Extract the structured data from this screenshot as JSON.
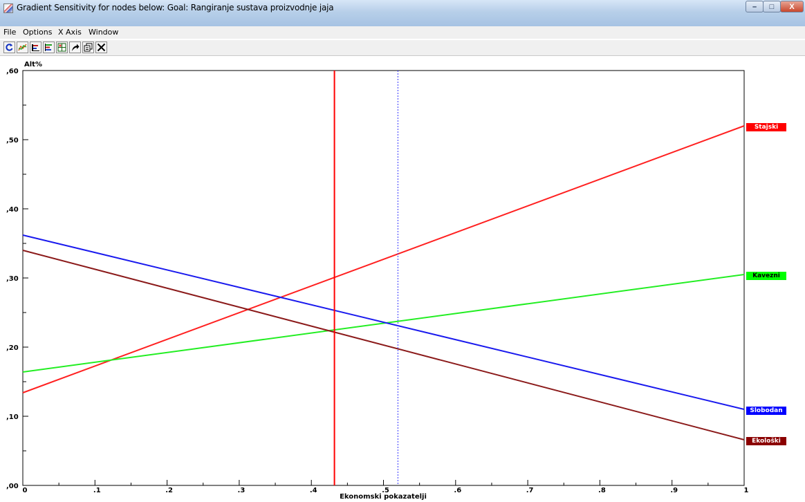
{
  "window": {
    "title": "Gradient Sensitivity for nodes below: Goal: Rangiranje sustava proizvodnje jaja",
    "minimize_label": "–",
    "maximize_label": "□",
    "close_label": "X"
  },
  "menu": [
    {
      "label": "File"
    },
    {
      "label": "Options"
    },
    {
      "label": "X Axis"
    },
    {
      "label": "Window"
    }
  ],
  "toolbar": [
    {
      "icon": "refresh-icon"
    },
    {
      "icon": "line-chart-icon"
    },
    {
      "icon": "bar-chart-icon"
    },
    {
      "icon": "stacked-bar-icon"
    },
    {
      "icon": "grid-chart-icon"
    },
    {
      "icon": "arrow-icon"
    },
    {
      "icon": "copy-icon"
    },
    {
      "icon": "close-icon"
    }
  ],
  "chart_data": {
    "type": "line",
    "ylabel": "Alt%",
    "xlabel": "Ekonomski pokazatelji",
    "xlim": [
      0,
      1
    ],
    "ylim": [
      0,
      0.6
    ],
    "x_ticks": [
      0,
      0.1,
      0.2,
      0.3,
      0.4,
      0.5,
      0.6,
      0.7,
      0.8,
      0.9,
      1
    ],
    "x_tick_labels": [
      "0",
      ".1",
      ".2",
      ".3",
      ".4",
      ".5",
      ".6",
      ".7",
      ".8",
      ".9",
      "1"
    ],
    "y_ticks": [
      0,
      0.1,
      0.2,
      0.3,
      0.4,
      0.5,
      0.6
    ],
    "y_tick_labels": [
      ",00",
      ",10",
      ",20",
      ",30",
      ",40",
      ",50",
      ",60"
    ],
    "current_weight": 0.432,
    "reference_weight": 0.52,
    "current_line_color": "#ff0000",
    "reference_line_color": "#3333ff",
    "series": [
      {
        "name": "Stajski",
        "x": [
          0,
          1
        ],
        "y": [
          0.134,
          0.52
        ],
        "color": "#ff2020",
        "label_color": "#ff0000",
        "label_text_color": "#ffffff"
      },
      {
        "name": "Kavezni",
        "x": [
          0,
          1
        ],
        "y": [
          0.164,
          0.305
        ],
        "color": "#22ee22",
        "label_color": "#00ff00",
        "label_text_color": "#000000"
      },
      {
        "name": "Slobodan",
        "x": [
          0,
          1
        ],
        "y": [
          0.362,
          0.11
        ],
        "color": "#1a1aee",
        "label_color": "#0000ff",
        "label_text_color": "#ffffff"
      },
      {
        "name": "Ekološki",
        "x": [
          0,
          1
        ],
        "y": [
          0.34,
          0.066
        ],
        "color": "#8b1a1a",
        "label_color": "#8b0000",
        "label_text_color": "#ffffff"
      }
    ]
  }
}
